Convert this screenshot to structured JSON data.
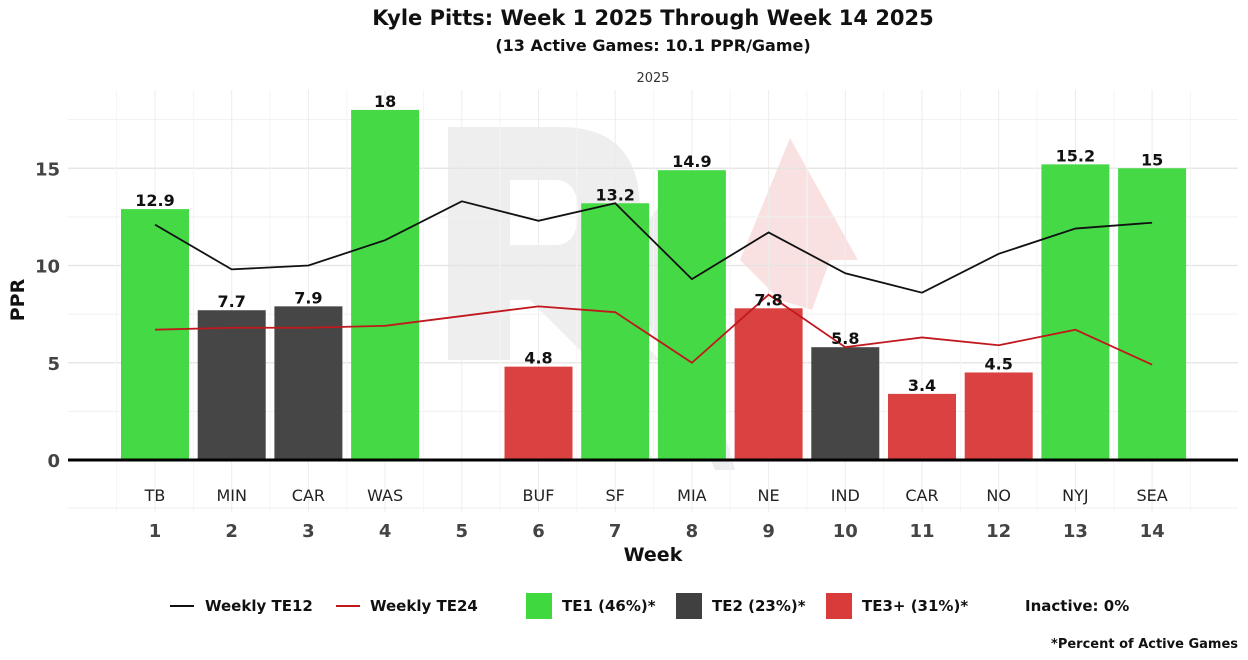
{
  "chart_data": {
    "type": "bar",
    "title": "Kyle Pitts: Week 1 2025 Through Week 14 2025",
    "subtitle": "(13 Active Games: 10.1 PPR/Game)",
    "facet_label": "2025",
    "xlabel": "Week",
    "ylabel": "PPR",
    "ylim": [
      0,
      19
    ],
    "yticks": [
      0,
      5,
      10,
      15
    ],
    "weeks": [
      1,
      2,
      3,
      4,
      5,
      6,
      7,
      8,
      9,
      10,
      11,
      12,
      13,
      14
    ],
    "opponents": [
      "TB",
      "MIN",
      "CAR",
      "WAS",
      "",
      "BUF",
      "SF",
      "MIA",
      "NE",
      "IND",
      "CAR",
      "NO",
      "NYJ",
      "SEA"
    ],
    "values": [
      12.9,
      7.7,
      7.9,
      18,
      null,
      4.8,
      13.2,
      14.9,
      7.8,
      5.8,
      3.4,
      4.5,
      15.2,
      15
    ],
    "value_labels": [
      "12.9",
      "7.7",
      "7.9",
      "18",
      "",
      "4.8",
      "13.2",
      "14.9",
      "7.8",
      "5.8",
      "3.4",
      "4.5",
      "15.2",
      "15"
    ],
    "tiers": [
      "TE1",
      "TE2",
      "TE2",
      "TE1",
      null,
      "TE3+",
      "TE1",
      "TE1",
      "TE3+",
      "TE2",
      "TE3+",
      "TE3+",
      "TE1",
      "TE1"
    ],
    "tier_colors": {
      "TE1": "#3fd83f",
      "TE2": "#404040",
      "TE3+": "#d93b3b"
    },
    "lines": [
      {
        "name": "Weekly TE12",
        "color": "#111111",
        "values": [
          12.1,
          9.8,
          10.0,
          11.3,
          13.3,
          12.3,
          13.2,
          9.3,
          11.7,
          9.6,
          8.6,
          10.6,
          11.9,
          12.2
        ]
      },
      {
        "name": "Weekly TE24",
        "color": "#c0181d",
        "values": [
          6.7,
          6.8,
          6.8,
          6.9,
          7.4,
          7.9,
          7.6,
          5.0,
          8.5,
          5.8,
          6.3,
          5.9,
          6.7,
          4.9
        ]
      }
    ],
    "legend": [
      {
        "kind": "line",
        "label": "Weekly TE12",
        "color": "#111111"
      },
      {
        "kind": "line",
        "label": "Weekly TE24",
        "color": "#c0181d"
      },
      {
        "kind": "box",
        "label": "TE1 (46%)*",
        "color": "#3fd83f"
      },
      {
        "kind": "box",
        "label": "TE2 (23%)*",
        "color": "#404040"
      },
      {
        "kind": "box",
        "label": "TE3+ (31%)*",
        "color": "#d93b3b"
      },
      {
        "kind": "text",
        "label": "Inactive: 0%"
      }
    ],
    "legend_position": "bottom",
    "grid": true,
    "footnote": "*Percent of Active Games"
  }
}
